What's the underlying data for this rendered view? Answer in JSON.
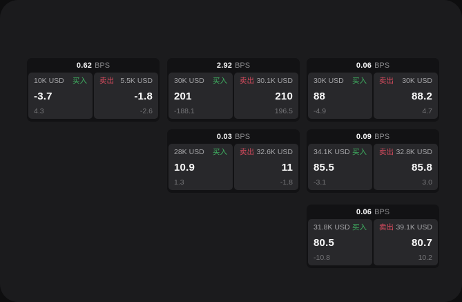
{
  "labels": {
    "buy": "买入",
    "sell": "卖出",
    "bps_unit": "BPS"
  },
  "colors": {
    "window_bg": "#1b1b1d",
    "card_bg": "#121214",
    "panel_bg": "#28282b",
    "buy_green": "#3fb061",
    "sell_red": "#d84b5e"
  },
  "cards": [
    {
      "bps": "0.62",
      "buy": {
        "size": "10K USD",
        "value": "-3.7",
        "sub": "4.3"
      },
      "sell": {
        "size": "5.5K USD",
        "value": "-1.8",
        "sub": "-2.6"
      }
    },
    {
      "bps": "2.92",
      "buy": {
        "size": "30K USD",
        "value": "201",
        "sub": "-188.1"
      },
      "sell": {
        "size": "30.1K USD",
        "value": "210",
        "sub": "196.5"
      }
    },
    {
      "bps": "0.06",
      "buy": {
        "size": "30K USD",
        "value": "88",
        "sub": "-4.9"
      },
      "sell": {
        "size": "30K USD",
        "value": "88.2",
        "sub": "4.7"
      }
    },
    {
      "bps": "0.03",
      "buy": {
        "size": "28K USD",
        "value": "10.9",
        "sub": "1.3"
      },
      "sell": {
        "size": "32.6K USD",
        "value": "11",
        "sub": "-1.8"
      }
    },
    {
      "bps": "0.09",
      "buy": {
        "size": "34.1K USD",
        "value": "85.5",
        "sub": "-3.1"
      },
      "sell": {
        "size": "32.8K USD",
        "value": "85.8",
        "sub": "3.0"
      }
    },
    {
      "bps": "0.06",
      "buy": {
        "size": "31.8K USD",
        "value": "80.5",
        "sub": "-10.8"
      },
      "sell": {
        "size": "39.1K USD",
        "value": "80.7",
        "sub": "10.2"
      }
    }
  ]
}
